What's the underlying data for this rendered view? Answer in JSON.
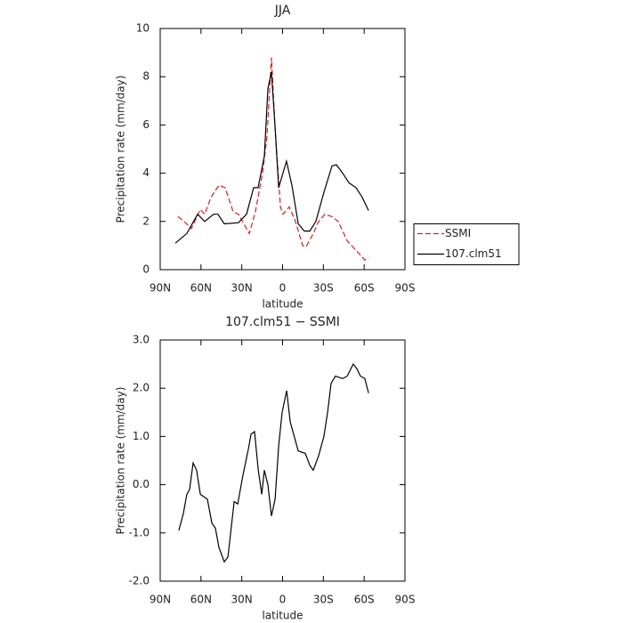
{
  "chart_data": [
    {
      "type": "line",
      "title": "JJA",
      "xlabel": "latitude",
      "ylabel": "Precipitation rate (mm/day)",
      "xlim": [
        90,
        -90
      ],
      "xticks": [
        {
          "value": 90,
          "label": "90N"
        },
        {
          "value": 60,
          "label": "60N"
        },
        {
          "value": 30,
          "label": "30N"
        },
        0,
        {
          "value": -30,
          "label": "30S"
        },
        {
          "value": -60,
          "label": "60S"
        },
        {
          "value": -90,
          "label": "90S"
        }
      ],
      "ylim": [
        0,
        10
      ],
      "yticks": [
        0,
        2,
        4,
        6,
        8,
        10
      ],
      "legend": "right",
      "series": [
        {
          "name": "SSMI",
          "color": "#e41a1c",
          "dashed": true,
          "x": [
            76.9,
            72.3,
            67.1,
            60.5,
            57.3,
            52.7,
            46.8,
            42.2,
            36.3,
            32.4,
            24.5,
            20.0,
            14.7,
            11.5,
            8.2,
            5.6,
            1.6,
            -0.3,
            -4.9,
            -9.5,
            -14.7,
            -17.3,
            -22.6,
            -26.5,
            -31.1,
            -36.3,
            -40.9,
            -47.5,
            -54.0,
            -57.3,
            -60.5,
            -63.2
          ],
          "values": [
            2.2,
            2.0,
            1.7,
            2.5,
            2.3,
            3.0,
            3.5,
            3.4,
            2.4,
            2.3,
            1.5,
            2.4,
            4.0,
            5.5,
            8.8,
            6.0,
            2.6,
            2.3,
            2.6,
            2.0,
            1.0,
            0.95,
            1.5,
            2.0,
            2.3,
            2.2,
            2.0,
            1.2,
            0.8,
            0.6,
            0.4,
            0.5
          ]
        },
        {
          "name": "107.clm51",
          "color": "#000000",
          "dashed": false,
          "x": [
            78.9,
            70.4,
            62.5,
            57.3,
            50.7,
            47.5,
            42.9,
            32.4,
            26.5,
            21.3,
            18.0,
            13.4,
            10.8,
            8.2,
            5.6,
            2.9,
            -2.9,
            -6.9,
            -11.5,
            -16.0,
            -20.0,
            -24.5,
            -30.4,
            -36.3,
            -39.6,
            -44.2,
            -48.8,
            -54.0,
            -58.6,
            -63.2
          ],
          "values": [
            1.1,
            1.5,
            2.3,
            2.0,
            2.3,
            2.3,
            1.9,
            1.95,
            2.3,
            3.4,
            3.4,
            4.7,
            7.5,
            8.2,
            6.0,
            3.4,
            4.5,
            3.5,
            1.9,
            1.6,
            1.6,
            2.0,
            3.2,
            4.3,
            4.35,
            4.0,
            3.6,
            3.4,
            3.0,
            2.45
          ]
        }
      ]
    },
    {
      "type": "line",
      "title": "107.clm51 − SSMI",
      "xlabel": "latitude",
      "ylabel": "Precipitation rate (mm/day)",
      "xlim": [
        90,
        -90
      ],
      "xticks": [
        {
          "value": 90,
          "label": "90N"
        },
        {
          "value": 60,
          "label": "60N"
        },
        {
          "value": 30,
          "label": "30N"
        },
        0,
        {
          "value": -30,
          "label": "30S"
        },
        {
          "value": -60,
          "label": "60S"
        },
        {
          "value": -90,
          "label": "90S"
        }
      ],
      "ylim": [
        -2,
        3
      ],
      "yticks": [
        {
          "value": -2,
          "label": "-2.0"
        },
        {
          "value": -1,
          "label": "-1.0"
        },
        {
          "value": 0,
          "label": "0.0"
        },
        {
          "value": 1,
          "label": "1.0"
        },
        {
          "value": 2,
          "label": "2.0"
        },
        {
          "value": 3,
          "label": "3.0"
        }
      ],
      "series": [
        {
          "color": "#000000",
          "dashed": false,
          "x": [
            76.3,
            73.0,
            70.4,
            68.4,
            65.8,
            63.2,
            60.5,
            55.3,
            52.0,
            49.4,
            46.8,
            42.9,
            40.2,
            35.6,
            33.0,
            29.1,
            25.1,
            23.2,
            20.6,
            17.9,
            15.3,
            13.4,
            10.8,
            8.2,
            5.5,
            2.9,
            0.3,
            -3.0,
            -5.6,
            -11.5,
            -16.7,
            -20.0,
            -22.6,
            -26.5,
            -30.4,
            -33.1,
            -35.7,
            -38.9,
            -44.2,
            -47.5,
            -52.0,
            -54.7,
            -57.3,
            -60.5,
            -63.2
          ],
          "values": [
            -0.95,
            -0.6,
            -0.2,
            -0.1,
            0.45,
            0.3,
            -0.2,
            -0.3,
            -0.8,
            -0.9,
            -1.3,
            -1.6,
            -1.5,
            -0.35,
            -0.4,
            0.2,
            0.75,
            1.05,
            1.1,
            0.3,
            -0.2,
            0.3,
            0.0,
            -0.65,
            -0.3,
            0.8,
            1.5,
            1.95,
            1.3,
            0.7,
            0.65,
            0.4,
            0.3,
            0.6,
            1.0,
            1.5,
            2.1,
            2.25,
            2.2,
            2.25,
            2.5,
            2.4,
            2.25,
            2.2,
            1.9
          ]
        }
      ]
    }
  ]
}
